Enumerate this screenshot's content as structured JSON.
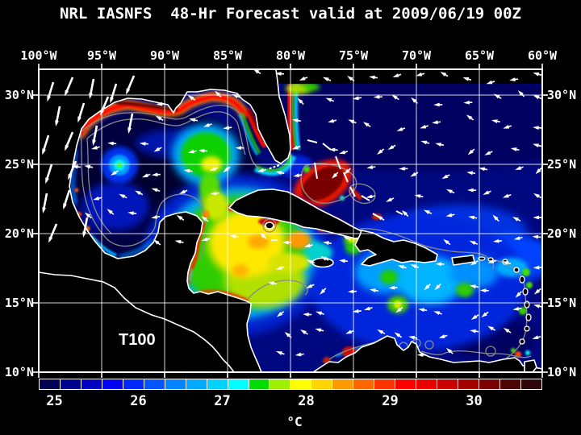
{
  "title": "NRL IASNFS  48-Hr Forecast valid at 2009/06/19 00Z",
  "axes": {
    "lon_ticks": [
      "100°W",
      "95°W",
      "90°W",
      "85°W",
      "80°W",
      "75°W",
      "70°W",
      "65°W",
      "60°W"
    ],
    "lat_ticks": [
      "30°N",
      "25°N",
      "20°N",
      "15°N",
      "10°N"
    ]
  },
  "map": {
    "annotation": "T100",
    "region": "Gulf of Mexico and Caribbean Sea",
    "grid_color": "#ffffff",
    "land_color": "#000000",
    "coastline_color": "#ffffff",
    "bathymetry_contour_color": "#8a8a8a",
    "no_data_color": "#000000",
    "wind_arrow_color": "#ffffff"
  },
  "colorbar": {
    "unit": "°C",
    "tick_labels": [
      "25",
      "26",
      "27",
      "28",
      "29",
      "30"
    ],
    "tick_values": [
      25,
      26,
      27,
      28,
      29,
      30
    ],
    "range_min": 25,
    "range_max": 31,
    "step": 0.25,
    "cell_colors": [
      "#020253",
      "#00008e",
      "#0000c4",
      "#0000f2",
      "#0128ff",
      "#0356ff",
      "#0084ff",
      "#00aaff",
      "#00d2ff",
      "#00ffff",
      "#00dd00",
      "#9cf000",
      "#ffff00",
      "#ffd400",
      "#ff9900",
      "#ff6600",
      "#ff3300",
      "#ff0000",
      "#ea0000",
      "#c80000",
      "#a40000",
      "#7a0202",
      "#4e0505",
      "#2e0808"
    ]
  },
  "chart_data": {
    "type": "heatmap",
    "title": "NRL IASNFS 48-Hr Forecast valid at 2009/06/19 00Z",
    "parameter_label": "T100",
    "value_unit": "°C",
    "x_axis": {
      "label": "longitude",
      "ticks": [
        "100°W",
        "95°W",
        "90°W",
        "85°W",
        "80°W",
        "75°W",
        "70°W",
        "65°W",
        "60°W"
      ],
      "range_deg_west": [
        100,
        60
      ]
    },
    "y_axis": {
      "label": "latitude",
      "ticks": [
        "30°N",
        "25°N",
        "20°N",
        "15°N",
        "10°N"
      ],
      "range_deg_north": [
        10,
        32
      ]
    },
    "colorbar_range_c": [
      25,
      31
    ],
    "colorbar_step_c": 0.25,
    "grid": true,
    "overlays": [
      "white 5-degree graticule",
      "white wind/current vectors",
      "gray bathymetry contours",
      "black land with white coastlines",
      "black no-data band along northern boundary east of Florida"
    ],
    "features": [
      {
        "region": "Gulf of Mexico deep interior",
        "lon_w": 91,
        "lat_n": 24.5,
        "approx_value_c": 25.1
      },
      {
        "region": "Warm-ring eddy core, western Gulf",
        "lon_w": 93.1,
        "lat_n": 25.0,
        "approx_value_c": 27.6
      },
      {
        "region": "Loop Current eddy (green/yellow), eastern Gulf",
        "lon_w": 86.7,
        "lat_n": 25.7,
        "approx_value_c": 27.9
      },
      {
        "region": "Northern Gulf shelf warm band (Texas-Louisiana-Florida panhandle)",
        "lon_w": 92,
        "lat_n": 29.3,
        "approx_value_c": 29.8
      },
      {
        "region": "West Florida shelf band",
        "lon_w": 82.7,
        "lat_n": 27.5,
        "approx_value_c": 30.4
      },
      {
        "region": "Florida Current / Gulf Stream ribbon",
        "lon_w": 80.0,
        "lat_n": 28.0,
        "approx_value_c": 29.3
      },
      {
        "region": "Great Bahama Bank (dark red)",
        "lon_w": 78.3,
        "lat_n": 23.7,
        "approx_value_c": 30.8
      },
      {
        "region": "Northwest Caribbean yellow pool",
        "lon_w": 83.5,
        "lat_n": 19.5,
        "approx_value_c": 28.2
      },
      {
        "region": "Northwest Caribbean orange patches",
        "lon_w": 79.5,
        "lat_n": 19.8,
        "approx_value_c": 28.8
      },
      {
        "region": "Yucatan / Belize coastal band",
        "lon_w": 87.5,
        "lat_n": 18.5,
        "approx_value_c": 29.4
      },
      {
        "region": "Gulf of Batabano, south Cuba shallows",
        "lon_w": 81.8,
        "lat_n": 22.2,
        "approx_value_c": 30.6
      },
      {
        "region": "Northwest Haiti warm patch",
        "lon_w": 74.6,
        "lat_n": 19.8,
        "approx_value_c": 28.2
      },
      {
        "region": "Eastern Caribbean background",
        "lon_w": 70,
        "lat_n": 15.5,
        "approx_value_c": 26.6
      },
      {
        "region": "Eastern Caribbean green patches",
        "lon_w": 71.5,
        "lat_n": 15.0,
        "approx_value_c": 27.5
      },
      {
        "region": "Atlantic north of 25N (dark navy)",
        "lon_w": 68,
        "lat_n": 28,
        "approx_value_c": 25.3
      },
      {
        "region": "Atlantic 20-23N brighter blue",
        "lon_w": 64,
        "lat_n": 21.5,
        "approx_value_c": 26.3
      },
      {
        "region": "Venezuela coastal upwelling (dark navy)",
        "lon_w": 64,
        "lat_n": 12.5,
        "approx_value_c": 25.2
      }
    ]
  }
}
